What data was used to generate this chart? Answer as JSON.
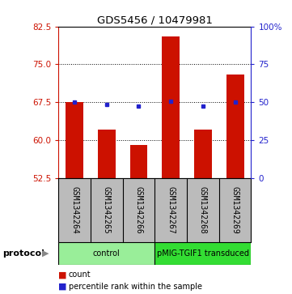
{
  "title": "GDS5456 / 10479981",
  "samples": [
    "GSM1342264",
    "GSM1342265",
    "GSM1342266",
    "GSM1342267",
    "GSM1342268",
    "GSM1342269"
  ],
  "bar_values": [
    67.5,
    62.0,
    59.0,
    80.5,
    62.0,
    73.0
  ],
  "percentile_values": [
    67.5,
    67.0,
    66.8,
    67.7,
    66.8,
    67.5
  ],
  "ylim_left": [
    52.5,
    82.5
  ],
  "ylim_right": [
    0,
    100
  ],
  "yticks_left": [
    52.5,
    60,
    67.5,
    75,
    82.5
  ],
  "yticks_right": [
    0,
    25,
    50,
    75,
    100
  ],
  "bar_color": "#cc1100",
  "dot_color": "#2222cc",
  "groups": [
    {
      "label": "control",
      "indices": [
        0,
        1,
        2
      ],
      "color": "#99ee99"
    },
    {
      "label": "pMIG-TGIF1 transduced",
      "indices": [
        3,
        4,
        5
      ],
      "color": "#33dd33"
    }
  ],
  "protocol_label": "protocol",
  "legend_count_label": "count",
  "legend_percentile_label": "percentile rank within the sample",
  "background_color": "#ffffff",
  "label_bg": "#bbbbbb",
  "bar_width": 0.55
}
